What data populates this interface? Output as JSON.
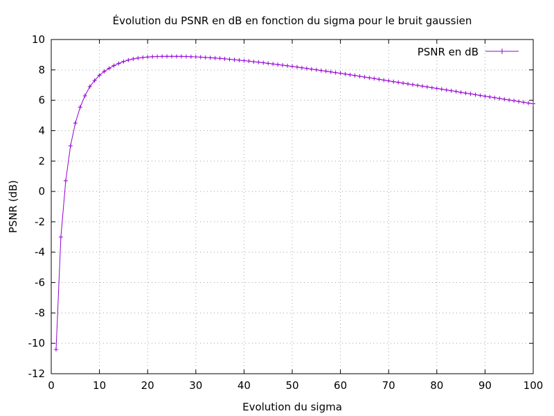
{
  "chart_data": {
    "type": "line",
    "title": "Évolution du PSNR en dB en fonction du sigma pour le bruit gaussien",
    "xlabel": "Evolution du sigma",
    "ylabel": "PSNR (dB)",
    "xlim": [
      0,
      100
    ],
    "ylim": [
      -12,
      10
    ],
    "xticks": [
      0,
      10,
      20,
      30,
      40,
      50,
      60,
      70,
      80,
      90,
      100
    ],
    "yticks": [
      -12,
      -10,
      -8,
      -6,
      -4,
      -2,
      0,
      2,
      4,
      6,
      8,
      10
    ],
    "grid": true,
    "legend_position": "top-right",
    "marker": "plus",
    "series": [
      {
        "name": "PSNR en dB",
        "color": "#9400d3",
        "x": [
          1,
          2,
          3,
          4,
          5,
          6,
          7,
          8,
          9,
          10,
          11,
          12,
          13,
          14,
          15,
          16,
          17,
          18,
          19,
          20,
          21,
          22,
          23,
          24,
          25,
          26,
          27,
          28,
          29,
          30,
          31,
          32,
          33,
          34,
          35,
          36,
          37,
          38,
          39,
          40,
          41,
          42,
          43,
          44,
          45,
          46,
          47,
          48,
          49,
          50,
          51,
          52,
          53,
          54,
          55,
          56,
          57,
          58,
          59,
          60,
          61,
          62,
          63,
          64,
          65,
          66,
          67,
          68,
          69,
          70,
          71,
          72,
          73,
          74,
          75,
          76,
          77,
          78,
          79,
          80,
          81,
          82,
          83,
          84,
          85,
          86,
          87,
          88,
          89,
          90,
          91,
          92,
          93,
          94,
          95,
          96,
          97,
          98,
          99,
          100
        ],
        "y": [
          -10.4,
          -3.0,
          0.7,
          3.0,
          4.5,
          5.55,
          6.3,
          6.9,
          7.3,
          7.65,
          7.9,
          8.1,
          8.28,
          8.42,
          8.55,
          8.65,
          8.72,
          8.78,
          8.82,
          8.85,
          8.87,
          8.88,
          8.89,
          8.89,
          8.89,
          8.89,
          8.89,
          8.88,
          8.87,
          8.86,
          8.84,
          8.82,
          8.8,
          8.78,
          8.76,
          8.73,
          8.7,
          8.67,
          8.64,
          8.61,
          8.58,
          8.54,
          8.51,
          8.47,
          8.43,
          8.39,
          8.35,
          8.31,
          8.27,
          8.23,
          8.19,
          8.14,
          8.1,
          8.05,
          8.01,
          7.96,
          7.92,
          7.87,
          7.82,
          7.78,
          7.73,
          7.68,
          7.63,
          7.58,
          7.53,
          7.48,
          7.43,
          7.38,
          7.33,
          7.28,
          7.23,
          7.18,
          7.13,
          7.08,
          7.03,
          6.98,
          6.93,
          6.88,
          6.83,
          6.78,
          6.73,
          6.68,
          6.63,
          6.58,
          6.52,
          6.47,
          6.42,
          6.37,
          6.32,
          6.27,
          6.22,
          6.17,
          6.12,
          6.07,
          6.02,
          5.97,
          5.92,
          5.87,
          5.82,
          5.77
        ]
      }
    ]
  }
}
